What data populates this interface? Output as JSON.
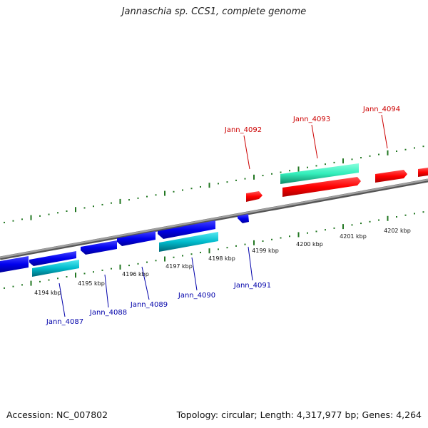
{
  "title": "Jannaschia sp. CCS1, complete genome",
  "footer": {
    "accession": "Accession: NC_007802",
    "topology": "Topology: circular; Length: 4,317,977 bp; Genes: 4,264"
  },
  "colors": {
    "forward_gene": "#ff0000",
    "reverse_gene": "#0000ee",
    "forward_cds": "#33eebb",
    "reverse_cds": "#00bbcc",
    "backbone": "#888888",
    "ticks": "#227722",
    "forward_label": "#cc0000",
    "reverse_label": "#0000aa"
  },
  "ticks": [
    {
      "label": "4194 kbp"
    },
    {
      "label": "4195 kbp"
    },
    {
      "label": "4196 kbp"
    },
    {
      "label": "4197 kbp"
    },
    {
      "label": "4198 kbp"
    },
    {
      "label": "4199 kbp"
    },
    {
      "label": "4200 kbp"
    },
    {
      "label": "4201 kbp"
    },
    {
      "label": "4202 kbp"
    }
  ],
  "genes": [
    {
      "label": "Jann_4087",
      "strand": "reverse"
    },
    {
      "label": "Jann_4088",
      "strand": "reverse"
    },
    {
      "label": "Jann_4089",
      "strand": "reverse"
    },
    {
      "label": "Jann_4090",
      "strand": "reverse"
    },
    {
      "label": "Jann_4091",
      "strand": "reverse"
    },
    {
      "label": "Jann_4092",
      "strand": "forward"
    },
    {
      "label": "Jann_4093",
      "strand": "forward"
    },
    {
      "label": "Jann_4094",
      "strand": "forward"
    }
  ]
}
